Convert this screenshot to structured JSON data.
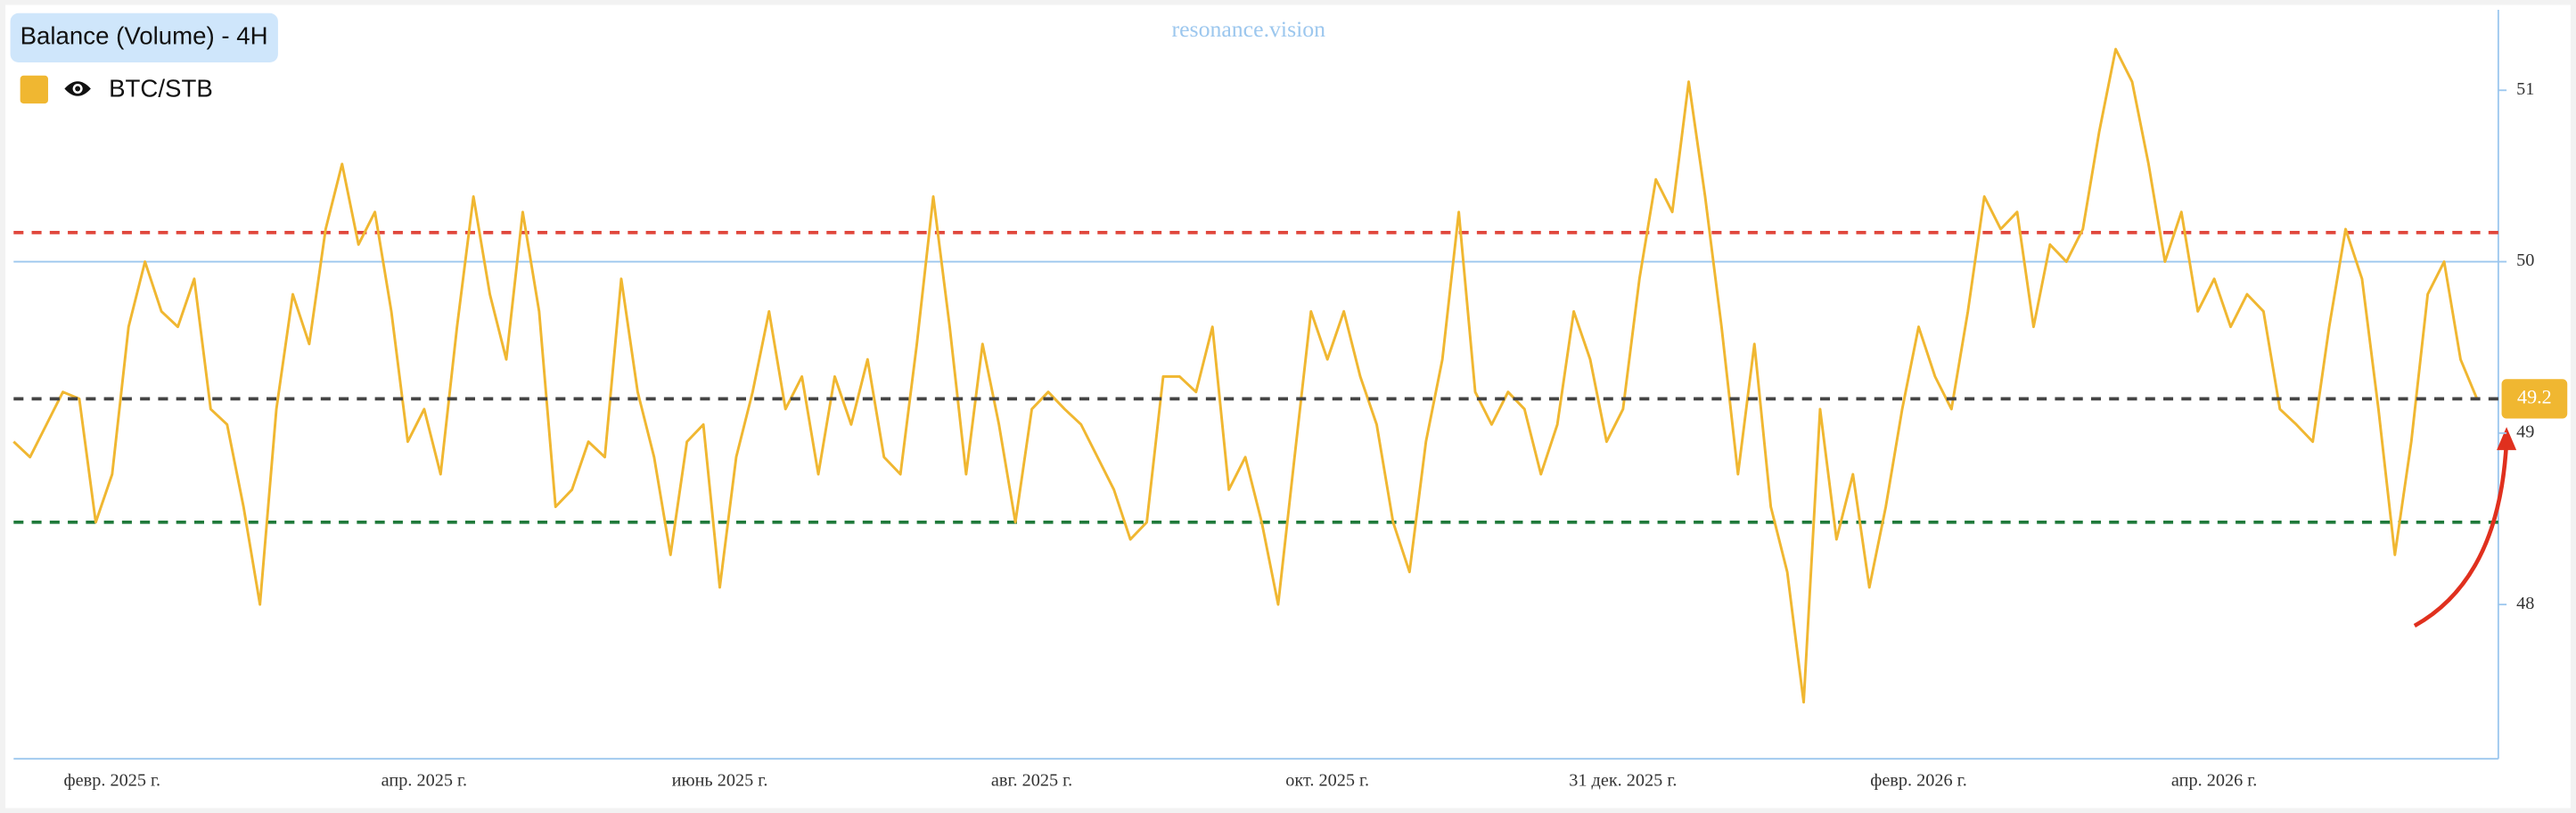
{
  "chart_data": {
    "type": "line",
    "title": "Balance (Volume) - 4H",
    "watermark": "resonance.vision",
    "categories": [
      null,
      null,
      null,
      null,
      null,
      null,
      "февр. 2025 г.",
      null,
      null,
      null,
      null,
      null,
      null,
      null,
      null,
      null,
      null,
      null,
      null,
      null,
      null,
      null,
      null,
      null,
      null,
      "апр. 2025 г.",
      null,
      null,
      null,
      null,
      null,
      null,
      null,
      null,
      null,
      null,
      null,
      null,
      null,
      null,
      null,
      null,
      null,
      "июнь 2025 г.",
      null,
      null,
      null,
      null,
      null,
      null,
      null,
      null,
      null,
      null,
      null,
      null,
      null,
      null,
      null,
      null,
      null,
      null,
      "авг. 2025 г.",
      null,
      null,
      null,
      null,
      null,
      null,
      null,
      null,
      null,
      null,
      null,
      null,
      null,
      null,
      null,
      null,
      null,
      "окт. 2025 г.",
      null,
      null,
      null,
      null,
      null,
      null,
      null,
      null,
      null,
      null,
      null,
      null,
      null,
      null,
      null,
      null,
      null,
      "31 дек. 2025 г.",
      null,
      null,
      null,
      null,
      null,
      null,
      null,
      null,
      null,
      null,
      null,
      null,
      null,
      null,
      null,
      null,
      null,
      "февр. 2026 г.",
      null,
      null,
      null,
      null,
      null,
      null,
      null,
      null,
      null,
      null,
      null,
      null,
      null,
      null,
      null,
      null,
      null,
      "апр. 2026 г.",
      null,
      null,
      null,
      null,
      null,
      null,
      null,
      null,
      null,
      null,
      null,
      null,
      null,
      null,
      null,
      null
    ],
    "series": [
      {
        "name": "BTC/STB",
        "color": "#f0b731",
        "values": [
          48.95,
          48.86,
          49.05,
          49.24,
          49.2,
          48.48,
          48.76,
          49.62,
          50.0,
          49.71,
          49.62,
          49.9,
          49.14,
          49.05,
          48.57,
          48.0,
          49.14,
          49.81,
          49.52,
          50.19,
          50.57,
          50.1,
          50.29,
          49.71,
          48.95,
          49.14,
          48.76,
          49.62,
          50.38,
          49.81,
          49.43,
          50.29,
          49.71,
          48.57,
          48.67,
          48.95,
          48.86,
          49.9,
          49.24,
          48.86,
          48.29,
          48.95,
          49.05,
          48.1,
          48.86,
          49.24,
          49.71,
          49.14,
          49.33,
          48.76,
          49.33,
          49.05,
          49.43,
          48.86,
          48.76,
          49.52,
          50.38,
          49.62,
          48.76,
          49.52,
          49.05,
          48.48,
          49.14,
          49.24,
          49.14,
          49.05,
          48.86,
          48.67,
          48.38,
          48.48,
          49.33,
          49.33,
          49.24,
          49.62,
          48.67,
          48.86,
          48.48,
          48.0,
          48.86,
          49.71,
          49.43,
          49.71,
          49.33,
          49.05,
          48.48,
          48.19,
          48.95,
          49.43,
          50.29,
          49.24,
          49.05,
          49.24,
          49.14,
          48.76,
          49.05,
          49.71,
          49.43,
          48.95,
          49.14,
          49.9,
          50.48,
          50.29,
          51.05,
          50.38,
          49.62,
          48.76,
          49.52,
          48.57,
          48.19,
          47.43,
          49.14,
          48.38,
          48.76,
          48.1,
          48.57,
          49.14,
          49.62,
          49.33,
          49.14,
          49.71,
          50.38,
          50.19,
          50.29,
          49.62,
          50.1,
          50.0,
          50.19,
          50.76,
          51.24,
          51.05,
          50.57,
          50.0,
          50.29,
          49.71,
          49.9,
          49.62,
          49.81,
          49.71,
          49.14,
          49.05,
          48.95,
          49.62,
          50.19,
          49.9,
          49.14,
          48.29,
          48.95,
          49.81,
          50.0,
          49.43,
          49.2
        ]
      }
    ],
    "ylim": [
      47.1,
      51.45
    ],
    "yticks": [
      48,
      49,
      50,
      51
    ],
    "reference_lines": [
      {
        "value": 50.17,
        "color": "#e0473c",
        "dashed": true
      },
      {
        "value": 50,
        "color": "#9cc7ee",
        "dashed": false
      },
      {
        "value": 48.48,
        "color": "#1f7a3a",
        "dashed": true
      }
    ],
    "last_value_line_color": "#444444"
  }
}
